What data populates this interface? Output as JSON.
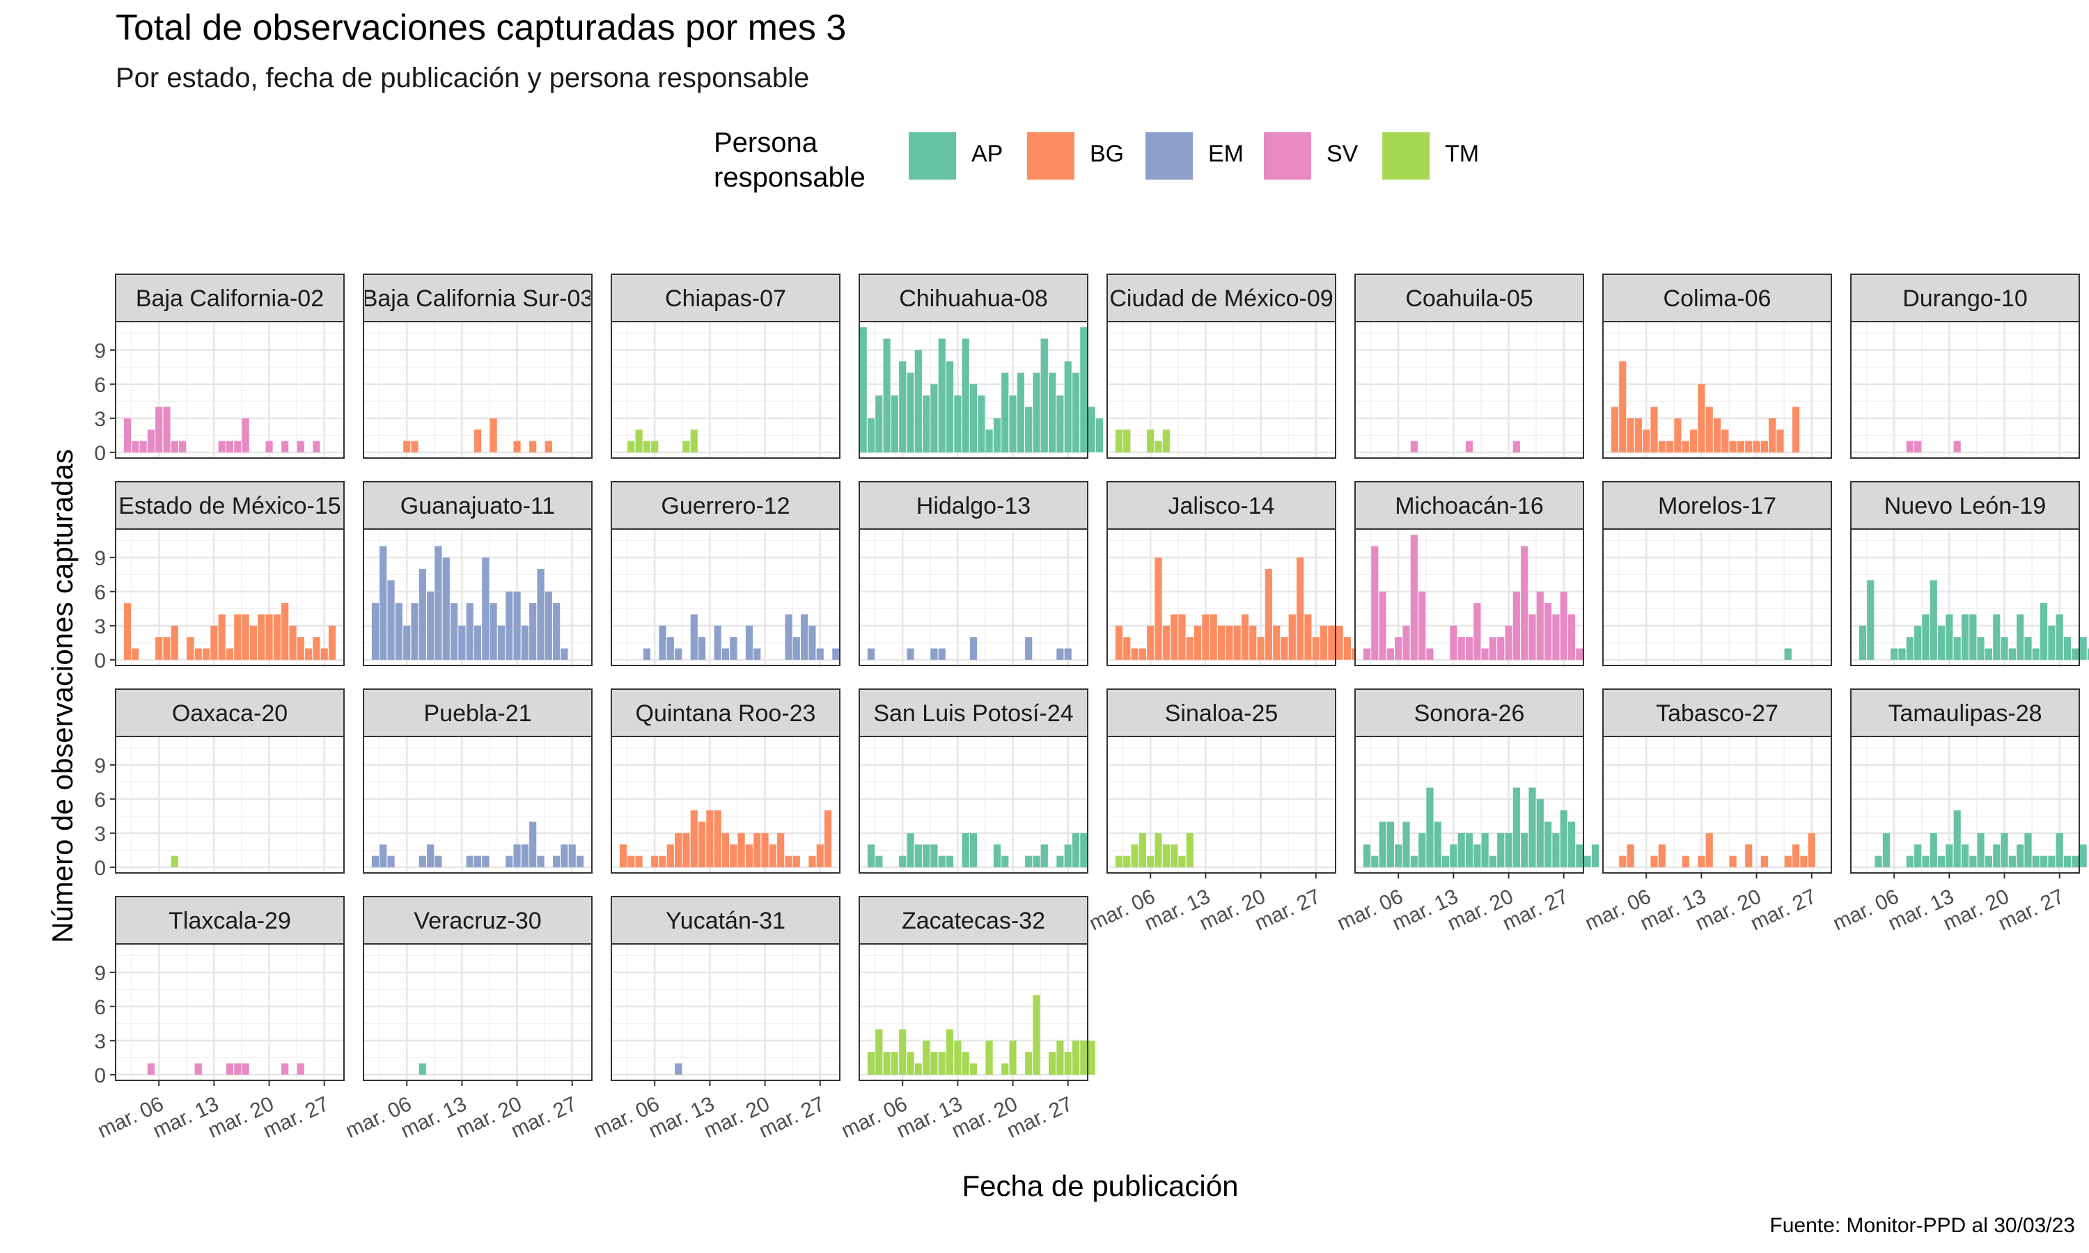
{
  "title": "Total de observaciones capturadas por mes 3",
  "subtitle": "Por estado, fecha de publicación y persona responsable",
  "legend": {
    "title": "Persona\nresponsable",
    "items": [
      {
        "key": "AP",
        "color": "#66c2a5"
      },
      {
        "key": "BG",
        "color": "#fc8d62"
      },
      {
        "key": "EM",
        "color": "#8da0cb"
      },
      {
        "key": "SV",
        "color": "#e78ac3"
      },
      {
        "key": "TM",
        "color": "#a6d854"
      }
    ]
  },
  "ylabel": "Número de observaciones capturadas",
  "xlabel": "Fecha de publicación",
  "caption": "Fuente: Monitor-PPD al 30/03/23",
  "chart_data": {
    "type": "bar",
    "x_start_day": 1,
    "x_ticks": [
      "mar. 06",
      "mar. 13",
      "mar. 20",
      "mar. 27"
    ],
    "y_ticks": [
      0,
      3,
      6,
      9
    ],
    "ylim": [
      -0.5,
      11.5
    ],
    "xlim": [
      0.5,
      29.5
    ],
    "panels": [
      {
        "name": "Baja California-02",
        "color": "SV",
        "values": [
          0,
          3,
          1,
          1,
          2,
          4,
          4,
          1,
          1,
          0,
          0,
          0,
          0,
          1,
          1,
          1,
          3,
          0,
          0,
          1,
          0,
          1,
          0,
          1,
          0,
          1
        ]
      },
      {
        "name": "Baja California Sur-03",
        "color": "BG",
        "values": [
          0,
          0,
          0,
          0,
          0,
          1,
          1,
          0,
          0,
          0,
          0,
          0,
          0,
          0,
          2,
          0,
          3,
          0,
          0,
          1,
          0,
          1,
          0,
          1
        ]
      },
      {
        "name": "Chiapas-07",
        "color": "TM",
        "values": [
          0,
          0,
          1,
          2,
          1,
          1,
          0,
          0,
          0,
          1,
          2
        ]
      },
      {
        "name": "Chihuahua-08",
        "color": "AP",
        "values": [
          11,
          3,
          5,
          10,
          5,
          8,
          7,
          9,
          5,
          6,
          10,
          8,
          5,
          10,
          6,
          5,
          2,
          3,
          7,
          5,
          7,
          4,
          7,
          10,
          7,
          5,
          8,
          7,
          11,
          4,
          3
        ]
      },
      {
        "name": "Ciudad de México-09",
        "color": "TM",
        "values": [
          0,
          2,
          2,
          0,
          0,
          2,
          1,
          2
        ]
      },
      {
        "name": "Coahuila-05",
        "color": "SV",
        "values": [
          0,
          0,
          0,
          0,
          0,
          0,
          0,
          1,
          0,
          0,
          0,
          0,
          0,
          0,
          1,
          0,
          0,
          0,
          0,
          0,
          1
        ]
      },
      {
        "name": "Colima-06",
        "color": "BG",
        "values": [
          0,
          4,
          8,
          3,
          3,
          2,
          4,
          1,
          1,
          3,
          1,
          2,
          6,
          4,
          3,
          2,
          1,
          1,
          1,
          1,
          1,
          3,
          2,
          0,
          4
        ]
      },
      {
        "name": "Durango-10",
        "color": "SV",
        "values": [
          0,
          0,
          0,
          0,
          0,
          0,
          0,
          1,
          1,
          0,
          0,
          0,
          0,
          1
        ]
      },
      {
        "name": "Estado de México-15",
        "color": "BG",
        "values": [
          0,
          5,
          1,
          0,
          0,
          2,
          2,
          3,
          0,
          2,
          1,
          1,
          3,
          4,
          1,
          4,
          4,
          3,
          4,
          4,
          4,
          5,
          3,
          2,
          1,
          2,
          1,
          3
        ]
      },
      {
        "name": "Guanajuato-11",
        "color": "EM",
        "values": [
          0,
          5,
          10,
          7,
          5,
          3,
          5,
          8,
          6,
          10,
          9,
          5,
          3,
          5,
          3,
          9,
          5,
          3,
          6,
          6,
          3,
          5,
          8,
          6,
          5,
          1
        ]
      },
      {
        "name": "Guerrero-12",
        "color": "EM",
        "values": [
          0,
          0,
          0,
          0,
          1,
          0,
          3,
          2,
          1,
          0,
          4,
          2,
          0,
          3,
          1,
          2,
          0,
          3,
          1,
          0,
          0,
          0,
          4,
          2,
          4,
          3,
          1,
          0,
          1
        ]
      },
      {
        "name": "Hidalgo-13",
        "color": "EM",
        "values": [
          0,
          1,
          0,
          0,
          0,
          0,
          1,
          0,
          0,
          1,
          1,
          0,
          0,
          0,
          2,
          0,
          0,
          0,
          0,
          0,
          0,
          2,
          0,
          0,
          0,
          1,
          1
        ]
      },
      {
        "name": "Jalisco-14",
        "color": "BG",
        "values": [
          0,
          3,
          2,
          1,
          1,
          3,
          9,
          3,
          4,
          4,
          2,
          3,
          4,
          4,
          3,
          3,
          3,
          4,
          3,
          2,
          8,
          3,
          2,
          4,
          9,
          4,
          2,
          3,
          3,
          3,
          2,
          1
        ]
      },
      {
        "name": "Michoacán-16",
        "color": "SV",
        "values": [
          0,
          1,
          10,
          6,
          1,
          2,
          3,
          11,
          6,
          1,
          0,
          0,
          3,
          2,
          2,
          5,
          1,
          2,
          2,
          3,
          6,
          10,
          4,
          6,
          5,
          4,
          6,
          4,
          1
        ]
      },
      {
        "name": "Morelos-17",
        "color": "AP",
        "values": [
          0,
          0,
          0,
          0,
          0,
          0,
          0,
          0,
          0,
          0,
          0,
          0,
          0,
          0,
          0,
          0,
          0,
          0,
          0,
          0,
          0,
          0,
          0,
          1
        ]
      },
      {
        "name": "Nuevo León-19",
        "color": "AP",
        "values": [
          0,
          3,
          7,
          0,
          0,
          1,
          1,
          2,
          3,
          4,
          7,
          3,
          4,
          2,
          4,
          4,
          2,
          1,
          4,
          2,
          1,
          4,
          2,
          1,
          5,
          3,
          4,
          2,
          1,
          2,
          1
        ]
      },
      {
        "name": "Oaxaca-20",
        "color": "TM",
        "values": [
          0,
          0,
          0,
          0,
          0,
          0,
          0,
          1
        ]
      },
      {
        "name": "Puebla-21",
        "color": "EM",
        "values": [
          0,
          1,
          2,
          1,
          0,
          0,
          0,
          1,
          2,
          1,
          0,
          0,
          0,
          1,
          1,
          1,
          0,
          0,
          1,
          2,
          2,
          4,
          1,
          0,
          1,
          2,
          2,
          1
        ]
      },
      {
        "name": "Quintana Roo-23",
        "color": "BG",
        "values": [
          0,
          2,
          1,
          1,
          0,
          1,
          1,
          2,
          3,
          3,
          5,
          4,
          5,
          5,
          3,
          2,
          3,
          2,
          3,
          3,
          2,
          3,
          1,
          1,
          0,
          1,
          2,
          5
        ]
      },
      {
        "name": "San Luis Potosí-24",
        "color": "AP",
        "values": [
          0,
          2,
          1,
          0,
          0,
          1,
          3,
          2,
          2,
          2,
          1,
          1,
          0,
          3,
          3,
          0,
          0,
          2,
          1,
          0,
          0,
          1,
          1,
          2,
          0,
          1,
          2,
          3,
          3
        ]
      },
      {
        "name": "Sinaloa-25",
        "color": "TM",
        "values": [
          0,
          1,
          1,
          2,
          3,
          1,
          3,
          2,
          2,
          1,
          3
        ]
      },
      {
        "name": "Sonora-26",
        "color": "AP",
        "values": [
          0,
          2,
          1,
          4,
          4,
          2,
          4,
          1,
          3,
          7,
          4,
          1,
          2,
          3,
          3,
          2,
          3,
          1,
          3,
          3,
          7,
          3,
          7,
          6,
          4,
          3,
          5,
          4,
          2,
          1,
          2
        ]
      },
      {
        "name": "Tabasco-27",
        "color": "BG",
        "values": [
          0,
          0,
          1,
          2,
          0,
          0,
          1,
          2,
          0,
          0,
          1,
          0,
          1,
          3,
          0,
          0,
          1,
          0,
          2,
          0,
          1,
          0,
          0,
          1,
          2,
          1,
          3
        ]
      },
      {
        "name": "Tamaulipas-28",
        "color": "AP",
        "values": [
          0,
          0,
          0,
          1,
          3,
          0,
          0,
          1,
          2,
          1,
          3,
          1,
          2,
          5,
          2,
          1,
          3,
          1,
          2,
          3,
          1,
          2,
          3,
          1,
          1,
          1,
          3,
          1,
          1,
          2
        ]
      },
      {
        "name": "Tlaxcala-29",
        "color": "SV",
        "values": [
          0,
          0,
          0,
          0,
          1,
          0,
          0,
          0,
          0,
          0,
          1,
          0,
          0,
          0,
          1,
          1,
          1,
          0,
          0,
          0,
          0,
          1,
          0,
          1
        ]
      },
      {
        "name": "Veracruz-30",
        "color": "AP",
        "values": [
          0,
          0,
          0,
          0,
          0,
          0,
          0,
          1
        ]
      },
      {
        "name": "Yucatán-31",
        "color": "EM",
        "values": [
          0,
          0,
          0,
          0,
          0,
          0,
          0,
          0,
          1
        ]
      },
      {
        "name": "Zacatecas-32",
        "color": "TM",
        "values": [
          0,
          2,
          4,
          2,
          2,
          4,
          2,
          1,
          3,
          2,
          2,
          4,
          3,
          2,
          1,
          0,
          3,
          0,
          1,
          3,
          0,
          2,
          7,
          0,
          2,
          3,
          2,
          3,
          3,
          3
        ]
      }
    ]
  }
}
